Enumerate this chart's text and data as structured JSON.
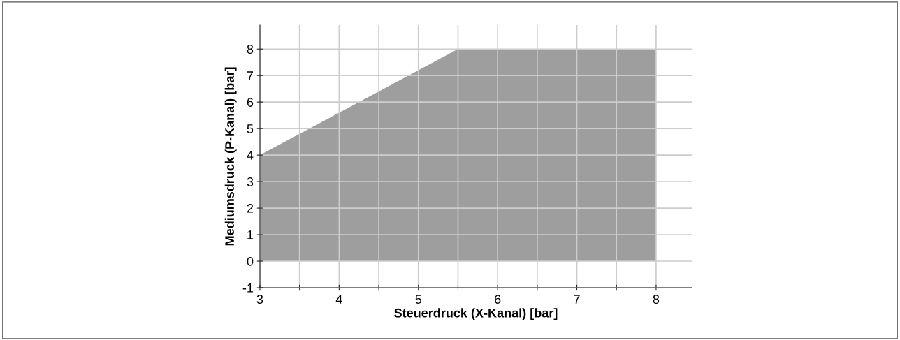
{
  "chart_data": {
    "type": "area",
    "xlabel": "Steuerdruck (X-Kanal) [bar]",
    "ylabel": "Mediumsdruck (P-Kanal) [bar]",
    "x": [
      3,
      5.5,
      8
    ],
    "series": [
      {
        "color": "#9e9e9e",
        "values": [
          4,
          8,
          8
        ]
      }
    ],
    "xlim": [
      3,
      8.45
    ],
    "ylim": [
      -1,
      8.9
    ],
    "xticks": [
      3,
      {
        "value": 3.5,
        "label": null
      },
      4,
      {
        "value": 4.5,
        "label": null
      },
      5,
      {
        "value": 5.5,
        "label": null
      },
      6,
      {
        "value": 6.5,
        "label": null
      },
      7,
      {
        "value": 7.5,
        "label": null
      },
      8
    ],
    "yticks": [
      -1,
      0,
      1,
      2,
      3,
      4,
      5,
      6,
      7,
      8
    ],
    "grid": true
  }
}
